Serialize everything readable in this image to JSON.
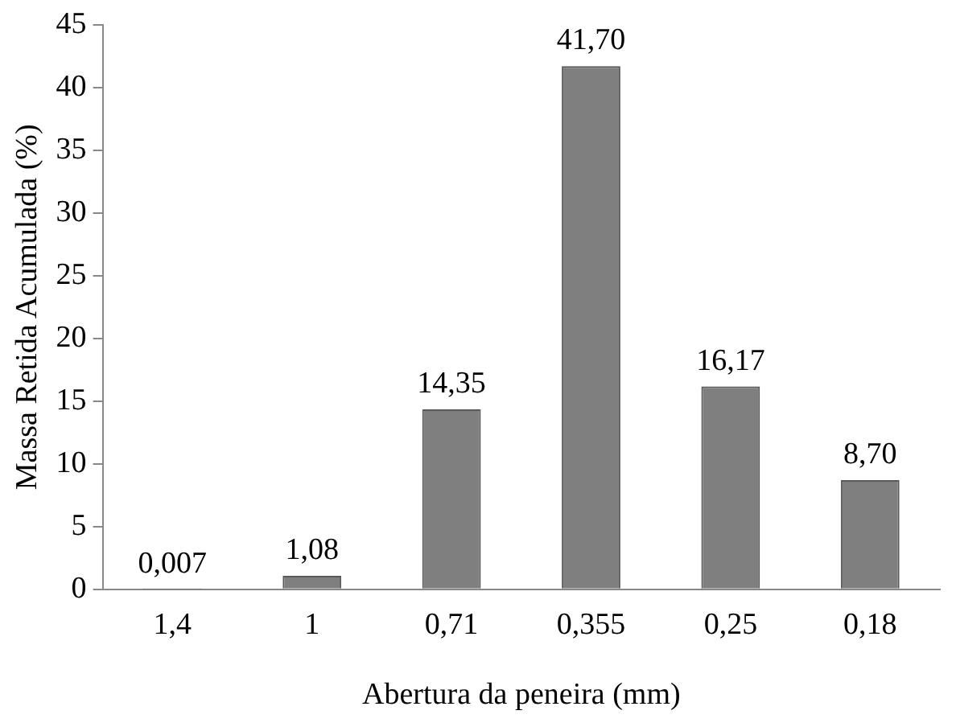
{
  "chart_data": {
    "type": "bar",
    "xlabel": "Abertura da peneira (mm)",
    "ylabel": "Massa Retida Acumulada (%)",
    "categories": [
      "1,4",
      "1",
      "0,71",
      "0,355",
      "0,25",
      "0,18"
    ],
    "values": [
      0.007,
      1.08,
      14.35,
      41.7,
      16.17,
      8.7
    ],
    "value_labels": [
      "0,007",
      "1,08",
      "14,35",
      "41,70",
      "16,17",
      "8,70"
    ],
    "color": "#7f7f7f",
    "ylim": [
      0,
      45
    ],
    "yticks": [
      0,
      5,
      10,
      15,
      20,
      25,
      30,
      35,
      40,
      45
    ],
    "grid": false,
    "legend": false
  }
}
